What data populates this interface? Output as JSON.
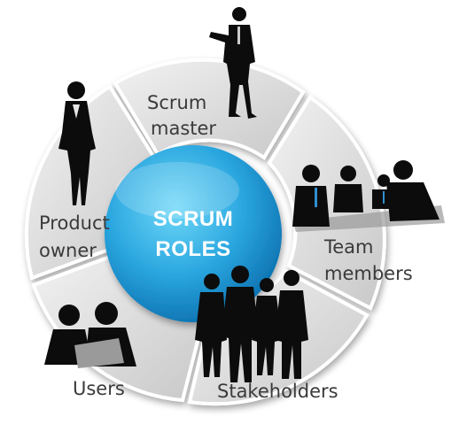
{
  "hub": {
    "line1": "SCRUM",
    "line2": "ROLES"
  },
  "segments": {
    "scrum_master": {
      "line1": "Scrum",
      "line2": "master"
    },
    "team_members": {
      "line1": "Team",
      "line2": "members"
    },
    "stakeholders": {
      "label": "Stakeholders"
    },
    "users": {
      "label": "Users"
    },
    "product_owner": {
      "line1": "Product",
      "line2": "owner"
    }
  },
  "colors": {
    "ring_light": "#eeeeee",
    "ring_dark": "#b9b9b9",
    "hub_light": "#5fd0f5",
    "hub_dark": "#0d7fc0",
    "silhouette": "#0c0c0c",
    "tie_accent": "#2f8fd0"
  }
}
